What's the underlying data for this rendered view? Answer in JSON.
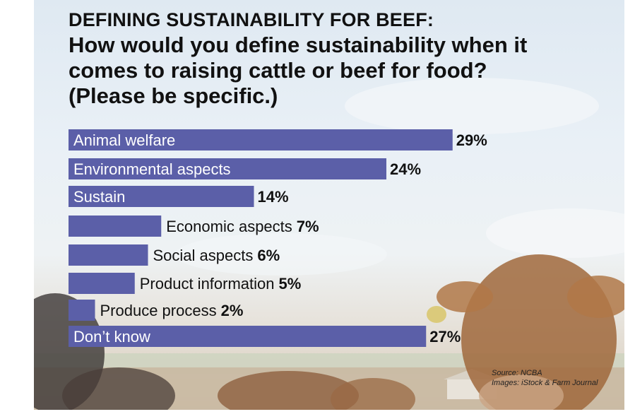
{
  "header": {
    "kicker": "DEFINING SUSTAINABILITY FOR BEEF:",
    "question": "How would you define sustainability when it comes to raising cattle or beef for food? (Please be specific.)"
  },
  "chart_data": {
    "type": "bar",
    "orientation": "horizontal",
    "categories": [
      "Animal welfare",
      "Environmental aspects",
      "Sustain",
      "Economic aspects",
      "Social aspects",
      "Product information",
      "Produce process",
      "Don’t know"
    ],
    "values": [
      29,
      24,
      14,
      7,
      6,
      5,
      2,
      27
    ],
    "value_labels": [
      "29%",
      "24%",
      "14%",
      "7%",
      "6%",
      "5%",
      "2%",
      "27%"
    ],
    "unit": "%",
    "bar_color": "#5b5fa8",
    "grid": false,
    "legend": "none"
  },
  "source": {
    "line1": "Source: NCBA",
    "line2": "Images: iStock & Farm Journal"
  }
}
